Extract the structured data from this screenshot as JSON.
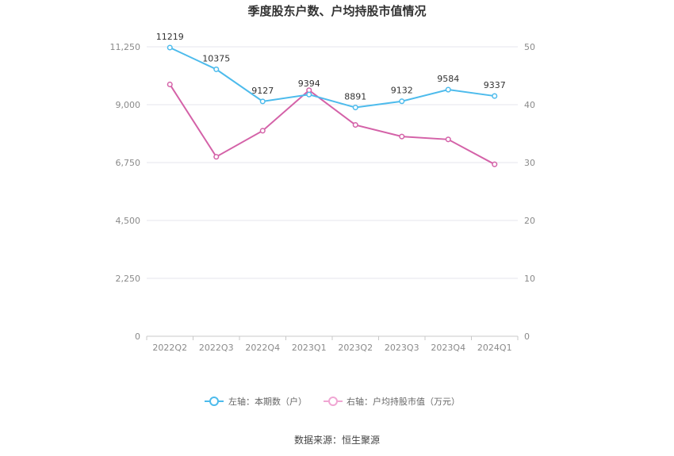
{
  "chart_data": {
    "type": "line",
    "title": "季度股东户数、户均持股市值情况",
    "categories": [
      "2022Q2",
      "2022Q3",
      "2022Q4",
      "2023Q1",
      "2023Q2",
      "2023Q3",
      "2023Q4",
      "2024Q1"
    ],
    "left_axis": {
      "ticks": [
        "0",
        "2,250",
        "4,500",
        "6,750",
        "9,000",
        "11,250"
      ],
      "ylim": [
        0,
        11250
      ]
    },
    "right_axis": {
      "ticks": [
        "0",
        "10",
        "20",
        "30",
        "40",
        "50"
      ],
      "ylim": [
        0,
        50
      ]
    },
    "series": [
      {
        "name": "左轴：本期数（户）",
        "axis": "left",
        "color": "#4dbbec",
        "values": [
          11219,
          10375,
          9127,
          9394,
          8891,
          9132,
          9584,
          9337
        ],
        "data_labels": [
          "11219",
          "10375",
          "9127",
          "9394",
          "8891",
          "9132",
          "9584",
          "9337"
        ]
      },
      {
        "name": "右轴：户均持股市值（万元）",
        "axis": "right",
        "color": "#d462a8",
        "legend_color": "#f0a6d3",
        "values": [
          43.5,
          31.0,
          35.5,
          42.5,
          36.5,
          34.5,
          34.0,
          29.7
        ]
      }
    ],
    "grid": true,
    "legend_position": "bottom"
  },
  "source": "数据来源：恒生聚源"
}
